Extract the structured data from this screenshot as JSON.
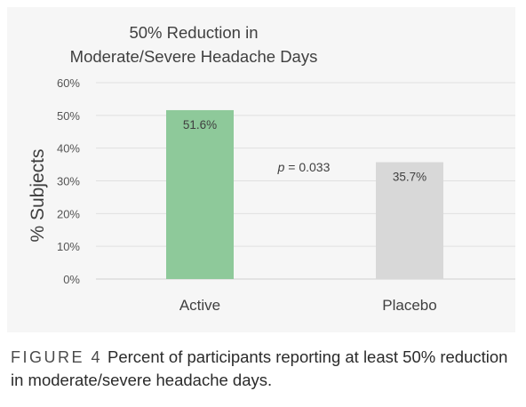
{
  "chart_data": {
    "type": "bar",
    "title_lines": [
      "50% Reduction in",
      "Moderate/Severe Headache Days"
    ],
    "categories": [
      "Active",
      "Placebo"
    ],
    "values": [
      51.6,
      35.7
    ],
    "data_labels": [
      "51.6%",
      "35.7%"
    ],
    "bar_colors": [
      "#8ec99a",
      "#d8d8d8"
    ],
    "ylabel": "% Subjects",
    "xlabel": "",
    "ylim": [
      0,
      60
    ],
    "yticks": [
      0,
      10,
      20,
      30,
      40,
      50,
      60
    ],
    "ytick_labels": [
      "0%",
      "10%",
      "20%",
      "30%",
      "40%",
      "50%",
      "60%"
    ],
    "grid": true,
    "annotation": {
      "italic": "p",
      "text": " = 0.033"
    }
  },
  "caption": {
    "label": "FIGURE 4",
    "text": "Percent of participants reporting at least 50% reduction in moderate/severe headache days."
  }
}
